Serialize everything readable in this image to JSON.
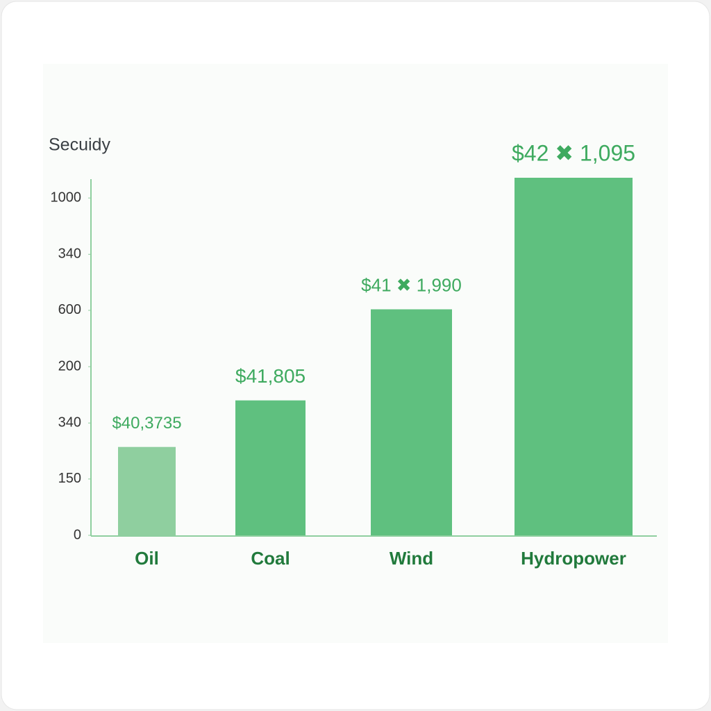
{
  "chart_data": {
    "type": "bar",
    "title": "Secuidy",
    "categories": [
      "Oil",
      "Coal",
      "Wind",
      "Hydropower"
    ],
    "values": [
      262,
      400,
      670,
      1060
    ],
    "value_labels": [
      "$40,3735",
      "$41,805",
      "$41 ✖ 1,990",
      "$42 ✖ 1,095"
    ],
    "colors": [
      "#8fcf9f",
      "#5fc07f",
      "#5fc07f",
      "#5fc07f"
    ],
    "ylim": [
      0,
      1060
    ],
    "yticks": [
      0,
      {
        "value": 167,
        "label": "150"
      },
      {
        "value": 333,
        "label": "340"
      },
      {
        "value": 500,
        "label": "200"
      },
      {
        "value": 667,
        "label": "600"
      },
      {
        "value": 833,
        "label": "340"
      },
      1000
    ]
  }
}
